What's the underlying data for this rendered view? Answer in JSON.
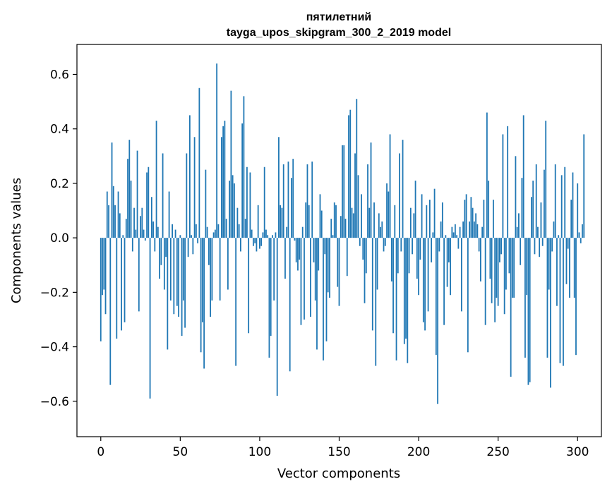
{
  "chart_data": {
    "type": "bar",
    "title_line1": "пятилетний",
    "title_line2": "tayga_upos_skipgram_300_2_2019 model",
    "xlabel": "Vector components",
    "ylabel": "Components values",
    "xlim": [
      -15,
      315
    ],
    "ylim": [
      -0.73,
      0.71
    ],
    "x_ticks": [
      0,
      50,
      100,
      150,
      200,
      250,
      300
    ],
    "x_tick_labels": [
      "0",
      "50",
      "100",
      "150",
      "200",
      "250",
      "300"
    ],
    "y_ticks": [
      -0.6,
      -0.4,
      -0.2,
      0.0,
      0.2,
      0.4,
      0.6
    ],
    "y_tick_labels": [
      "−0.6",
      "−0.4",
      "−0.2",
      "0.0",
      "0.2",
      "0.4",
      "0.6"
    ],
    "bar_color": "#1f77b4",
    "values": [
      -0.38,
      -0.21,
      -0.19,
      -0.28,
      0.17,
      0.12,
      -0.54,
      0.35,
      0.19,
      0.12,
      -0.37,
      0.17,
      0.09,
      -0.34,
      0.01,
      -0.31,
      0.07,
      0.29,
      0.36,
      0.21,
      -0.05,
      0.11,
      0.03,
      0.32,
      -0.27,
      0.08,
      0.11,
      0.03,
      -0.01,
      0.24,
      0.26,
      -0.59,
      0.15,
      0.06,
      -0.05,
      0.43,
      0.04,
      -0.15,
      -0.1,
      0.31,
      -0.19,
      -0.07,
      -0.41,
      0.17,
      -0.23,
      0.05,
      -0.28,
      0.03,
      -0.25,
      -0.29,
      0.01,
      -0.36,
      -0.23,
      -0.33,
      0.31,
      -0.07,
      0.45,
      0.01,
      -0.06,
      0.37,
      0.05,
      -0.02,
      0.55,
      -0.42,
      -0.31,
      -0.48,
      0.25,
      0.04,
      -0.1,
      -0.29,
      -0.23,
      0.02,
      0.03,
      0.64,
      0.05,
      -0.23,
      0.37,
      0.41,
      0.43,
      0.07,
      -0.19,
      0.21,
      0.54,
      0.23,
      0.2,
      -0.47,
      0.11,
      0.05,
      -0.05,
      0.42,
      0.52,
      0.07,
      0.26,
      -0.35,
      0.24,
      0.03,
      -0.03,
      -0.02,
      -0.05,
      0.12,
      -0.04,
      -0.03,
      0.02,
      0.26,
      0.03,
      0.01,
      -0.44,
      -0.36,
      0.01,
      -0.23,
      0.02,
      -0.58,
      0.37,
      0.12,
      0.11,
      0.27,
      -0.15,
      0.04,
      0.28,
      -0.49,
      0.22,
      0.29,
      -0.01,
      -0.09,
      -0.12,
      -0.08,
      -0.32,
      0.04,
      -0.3,
      0.13,
      0.27,
      0.12,
      -0.29,
      0.28,
      -0.09,
      -0.23,
      -0.41,
      -0.12,
      0.16,
      0.1,
      -0.45,
      -0.06,
      -0.38,
      -0.2,
      -0.22,
      0.07,
      0.01,
      0.13,
      0.12,
      -0.18,
      -0.25,
      0.08,
      0.34,
      0.34,
      0.07,
      -0.14,
      0.45,
      0.47,
      0.11,
      0.09,
      0.31,
      0.51,
      0.23,
      -0.03,
      0.16,
      -0.08,
      -0.24,
      -0.13,
      0.27,
      0.11,
      0.35,
      -0.34,
      0.13,
      -0.47,
      -0.19,
      0.09,
      0.04,
      0.06,
      -0.05,
      -0.03,
      0.2,
      0.17,
      0.38,
      -0.16,
      -0.35,
      0.12,
      -0.45,
      -0.13,
      0.31,
      -0.05,
      0.36,
      -0.39,
      -0.37,
      -0.46,
      -0.13,
      0.11,
      -0.06,
      0.09,
      0.21,
      -0.15,
      -0.21,
      -0.08,
      0.16,
      -0.31,
      -0.34,
      0.12,
      -0.27,
      0.14,
      -0.09,
      0.02,
      0.18,
      -0.43,
      -0.61,
      -0.05,
      0.06,
      0.13,
      -0.32,
      0.01,
      -0.18,
      -0.09,
      -0.21,
      0.04,
      0.02,
      0.05,
      0.01,
      -0.04,
      0.04,
      -0.27,
      0.06,
      0.14,
      0.16,
      -0.42,
      0.06,
      0.15,
      0.11,
      0.06,
      0.09,
      0.05,
      -0.05,
      -0.16,
      0.04,
      0.14,
      -0.32,
      0.46,
      0.21,
      -0.15,
      -0.24,
      0.14,
      -0.31,
      -0.22,
      -0.25,
      -0.09,
      -0.06,
      0.38,
      -0.28,
      -0.19,
      0.41,
      -0.13,
      -0.51,
      -0.22,
      -0.22,
      0.3,
      0.04,
      0.09,
      -0.1,
      0.22,
      0.45,
      -0.44,
      -0.21,
      -0.54,
      -0.53,
      0.15,
      0.21,
      -0.06,
      0.27,
      0.04,
      -0.07,
      0.13,
      -0.03,
      0.25,
      0.43,
      -0.44,
      -0.19,
      -0.55,
      -0.05,
      0.06,
      0.27,
      -0.25,
      0.01,
      -0.46,
      0.23,
      -0.47,
      0.26,
      -0.17,
      -0.04,
      -0.22,
      0.14,
      0.24,
      -0.22,
      -0.43,
      0.2,
      0.02,
      -0.02,
      0.05,
      0.38
    ]
  }
}
